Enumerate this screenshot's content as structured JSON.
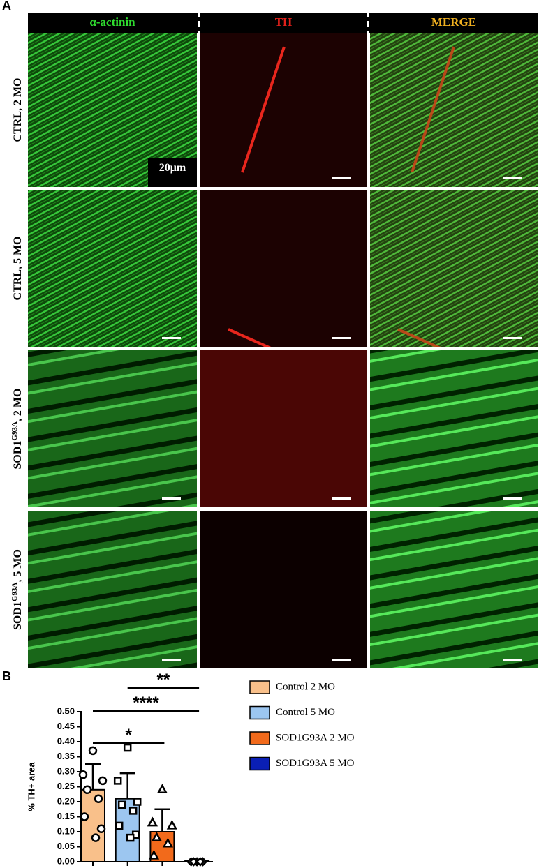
{
  "panel_a": {
    "label": "A",
    "columns": [
      "α-actinin",
      "TH",
      "MERGE"
    ],
    "rows": [
      {
        "base": "CTRL, 2 MO"
      },
      {
        "base": "CTRL, 5 MO"
      },
      {
        "base": "SOD1",
        "sup": "G93A",
        "rest": ", 2 MO"
      },
      {
        "base": "SOD1",
        "sup": "G93A",
        "rest": ", 5 MO"
      }
    ],
    "scale_bar": "20μm"
  },
  "chart_data": {
    "type": "bar",
    "label": "B",
    "y_label": "% TH+ area",
    "ylim": [
      0,
      0.5
    ],
    "yticks": [
      {
        "value": 0,
        "label": "0.00"
      },
      {
        "value": 0.05,
        "label": "0.05"
      },
      {
        "value": 0.1,
        "label": "0.10"
      },
      {
        "value": 0.15,
        "label": "0.15"
      },
      {
        "value": 0.2,
        "label": "0.20"
      },
      {
        "value": 0.25,
        "label": "0.25"
      },
      {
        "value": 0.3,
        "label": "0.30"
      },
      {
        "value": 0.35,
        "label": "0.35"
      },
      {
        "value": 0.4,
        "label": "0.40"
      },
      {
        "value": 0.45,
        "label": "0.45"
      },
      {
        "value": 0.5,
        "label": "0.50"
      }
    ],
    "series": [
      {
        "name": "Control 2 MO",
        "color": "#f9c08a",
        "marker": "circle",
        "values": [
          0.24
        ],
        "errors": [
          0.085
        ],
        "points": [
          0.37,
          0.29,
          0.27,
          0.24,
          0.21,
          0.15,
          0.11,
          0.08
        ]
      },
      {
        "name": "Control 5 MO",
        "color": "#9cc6f0",
        "marker": "square",
        "values": [
          0.21
        ],
        "errors": [
          0.085
        ],
        "points": [
          0.38,
          0.27,
          0.2,
          0.19,
          0.17,
          0.12,
          0.09,
          0.08
        ]
      },
      {
        "name": "SOD1G93A 2 MO",
        "color": "#f26a1b",
        "marker": "triangle",
        "values": [
          0.1
        ],
        "errors": [
          0.075
        ],
        "points": [
          0.24,
          0.13,
          0.12,
          0.08,
          0.06,
          0.02
        ]
      },
      {
        "name": "SOD1G93A 5 MO",
        "color": "#0a1fb5",
        "marker": "diamond",
        "values": [
          0.003
        ],
        "errors": [
          0
        ],
        "points": [
          0,
          0,
          0,
          0,
          0
        ]
      }
    ],
    "significance": [
      {
        "from": 1,
        "to": 3,
        "label": "**"
      },
      {
        "from": 0,
        "to": 3,
        "label": "****"
      },
      {
        "from": 0,
        "to": 2,
        "label": "*"
      }
    ]
  }
}
